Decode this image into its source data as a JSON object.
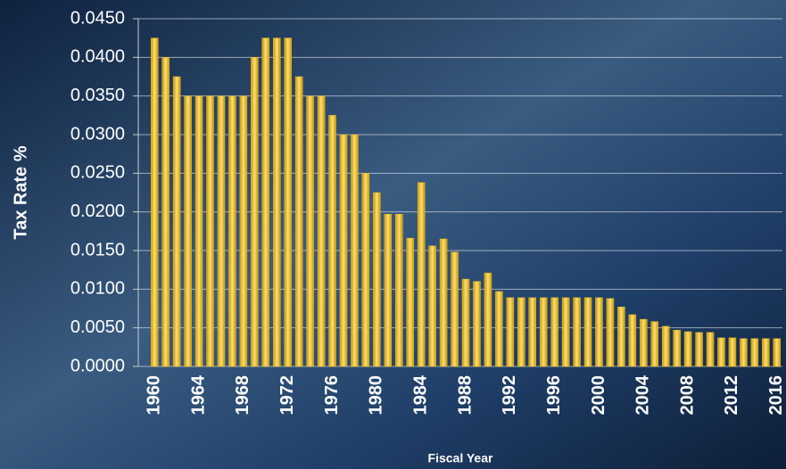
{
  "chart_data": {
    "type": "bar",
    "y_label": "Tax Rate %",
    "x_label": "Fiscal Year",
    "categories": [
      "1960",
      null,
      null,
      null,
      "1964",
      null,
      null,
      null,
      "1968",
      null,
      null,
      null,
      "1972",
      null,
      null,
      null,
      "1976",
      null,
      null,
      null,
      "1980",
      null,
      null,
      null,
      "1984",
      null,
      null,
      null,
      "1988",
      null,
      null,
      null,
      "1992",
      null,
      null,
      null,
      "1996",
      null,
      null,
      null,
      "2000",
      null,
      null,
      null,
      "2004",
      null,
      null,
      null,
      "2008",
      null,
      null,
      null,
      "2012",
      null,
      null,
      null,
      "2016"
    ],
    "values": [
      0.0425,
      0.04,
      0.0375,
      0.035,
      0.035,
      0.035,
      0.035,
      0.035,
      0.035,
      0.04,
      0.0425,
      0.0425,
      0.0425,
      0.0375,
      0.035,
      0.035,
      0.0325,
      0.03,
      0.03,
      0.025,
      0.0225,
      0.0197,
      0.0197,
      0.0166,
      0.0238,
      0.0156,
      0.0165,
      0.0148,
      0.0113,
      0.011,
      0.0121,
      0.0097,
      0.0089,
      0.0089,
      0.0089,
      0.0089,
      0.0089,
      0.0089,
      0.0089,
      0.0089,
      0.0089,
      0.0088,
      0.0077,
      0.0067,
      0.0061,
      0.0058,
      0.0052,
      0.0047,
      0.0045,
      0.0044,
      0.0044,
      0.0037,
      0.0037,
      0.0036,
      0.0036,
      0.0036,
      0.0036
    ],
    "color": "#f2c21a",
    "ylim": [
      0,
      0.045
    ],
    "yticks": [
      {
        "value": 0,
        "label": "0.0000"
      },
      {
        "value": 0.005,
        "label": "0.0050"
      },
      {
        "value": 0.01,
        "label": "0.0100"
      },
      {
        "value": 0.015,
        "label": "0.0150"
      },
      {
        "value": 0.02,
        "label": "0.0200"
      },
      {
        "value": 0.025,
        "label": "0.0250"
      },
      {
        "value": 0.03,
        "label": "0.0300"
      },
      {
        "value": 0.035,
        "label": "0.0350"
      },
      {
        "value": 0.04,
        "label": "0.0400"
      },
      {
        "value": 0.045,
        "label": "0.0450"
      }
    ],
    "grid": true
  }
}
